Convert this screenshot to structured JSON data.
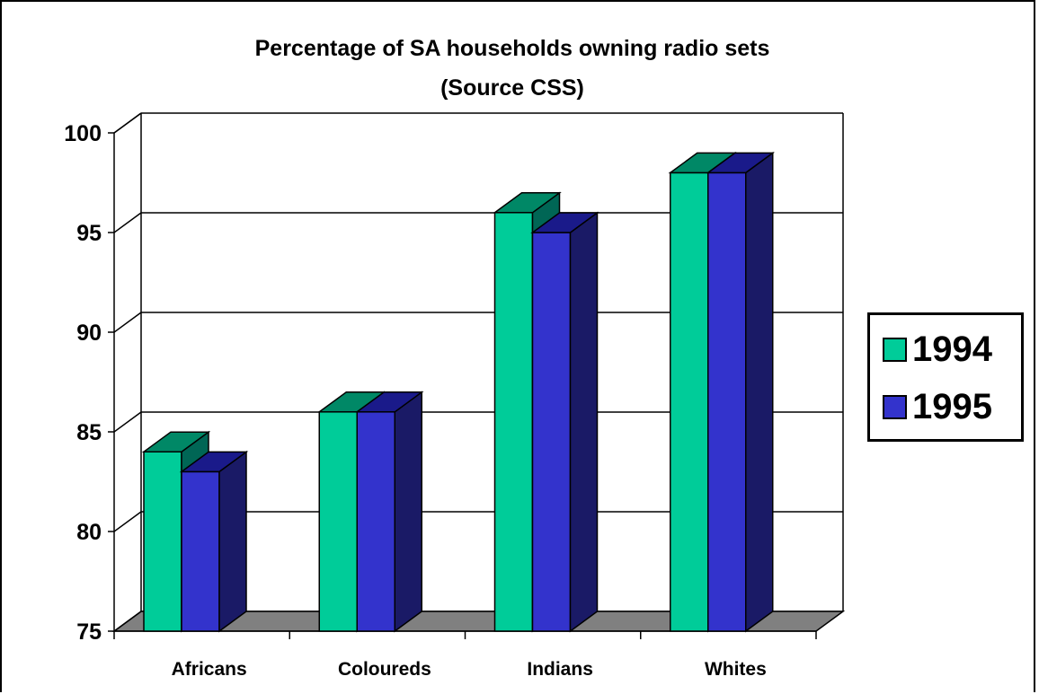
{
  "chart_data": {
    "type": "bar",
    "title": "Percentage of SA households owning radio sets",
    "subtitle": "(Source CSS)",
    "categories": [
      "Africans",
      "Coloureds",
      "Indians",
      "Whites"
    ],
    "series": [
      {
        "name": "1994",
        "values": [
          84,
          86,
          96,
          98
        ],
        "color": "#00CC99",
        "top_color": "#008866",
        "side_color": "#006655"
      },
      {
        "name": "1995",
        "values": [
          83,
          86,
          95,
          98
        ],
        "color": "#3333CC",
        "top_color": "#1A1A8A",
        "side_color": "#1A1A66"
      }
    ],
    "ylim": [
      75,
      100
    ],
    "yticks": [
      75,
      80,
      85,
      90,
      95,
      100
    ],
    "grid": true,
    "legend": "right",
    "style": "3d-clustered-column",
    "floor_color": "#808080"
  }
}
